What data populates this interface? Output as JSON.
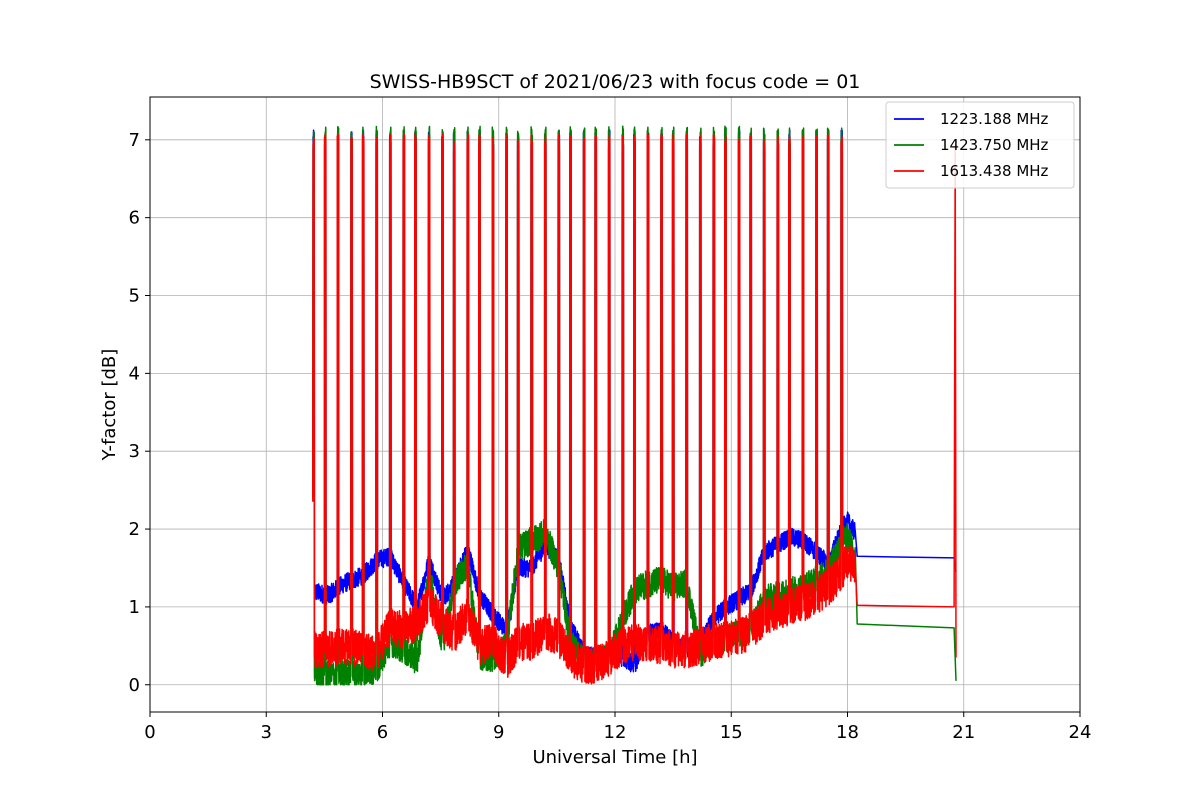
{
  "chart_data": {
    "type": "line",
    "title": "SWISS-HB9SCT of 2021/06/23 with focus code = 01",
    "xlabel": "Universal Time [h]",
    "ylabel": "Y-factor [dB]",
    "xlim": [
      0,
      24
    ],
    "ylim": [
      -0.35,
      7.55
    ],
    "xticks": [
      0,
      3,
      6,
      9,
      12,
      15,
      18,
      21,
      24
    ],
    "yticks": [
      0,
      1,
      2,
      3,
      4,
      5,
      6,
      7
    ],
    "grid": true,
    "legend_position": "top-right",
    "peak_hours": [
      4.22,
      4.52,
      4.85,
      5.2,
      5.5,
      5.85,
      6.2,
      6.55,
      6.85,
      7.2,
      7.55,
      7.85,
      8.2,
      8.5,
      8.85,
      9.2,
      9.5,
      9.85,
      10.2,
      10.55,
      10.85,
      11.2,
      11.5,
      11.85,
      12.2,
      12.5,
      12.85,
      13.2,
      13.5,
      13.85,
      14.2,
      14.55,
      14.85,
      15.2,
      15.5,
      15.85,
      16.2,
      16.5,
      16.85,
      17.2,
      17.5,
      17.85
    ],
    "series": [
      {
        "name": "1223.188 MHz",
        "color": "#0000ff",
        "peak_level": 7.0,
        "baseline": [
          [
            4.2,
            1.2
          ],
          [
            4.6,
            1.15
          ],
          [
            5.0,
            1.3
          ],
          [
            5.5,
            1.4
          ],
          [
            5.85,
            1.6
          ],
          [
            6.2,
            1.65
          ],
          [
            6.55,
            1.3
          ],
          [
            6.9,
            1.0
          ],
          [
            7.2,
            1.6
          ],
          [
            7.55,
            1.1
          ],
          [
            7.85,
            1.3
          ],
          [
            8.2,
            1.75
          ],
          [
            8.5,
            1.15
          ],
          [
            8.85,
            0.9
          ],
          [
            9.2,
            0.7
          ],
          [
            9.5,
            1.5
          ],
          [
            9.85,
            1.5
          ],
          [
            10.2,
            1.8
          ],
          [
            10.55,
            1.6
          ],
          [
            10.85,
            0.75
          ],
          [
            11.2,
            0.4
          ],
          [
            11.5,
            0.35
          ],
          [
            11.85,
            0.4
          ],
          [
            12.2,
            0.35
          ],
          [
            12.5,
            0.25
          ],
          [
            12.85,
            0.65
          ],
          [
            13.2,
            0.7
          ],
          [
            13.5,
            0.55
          ],
          [
            13.85,
            0.45
          ],
          [
            14.2,
            0.55
          ],
          [
            14.55,
            0.85
          ],
          [
            14.85,
            1.0
          ],
          [
            15.2,
            1.1
          ],
          [
            15.5,
            1.2
          ],
          [
            15.85,
            1.7
          ],
          [
            16.2,
            1.8
          ],
          [
            16.5,
            1.9
          ],
          [
            16.85,
            1.85
          ],
          [
            17.2,
            1.7
          ],
          [
            17.5,
            1.55
          ],
          [
            17.85,
            2.0
          ],
          [
            18.0,
            2.1
          ],
          [
            18.2,
            1.95
          ]
        ],
        "tail": [
          [
            18.25,
            1.65
          ],
          [
            20.75,
            1.63
          ],
          [
            20.8,
            1.45
          ]
        ]
      },
      {
        "name": "1423.750 MHz",
        "color": "#008000",
        "peak_level": 7.05,
        "baseline": [
          [
            4.2,
            0.15
          ],
          [
            4.6,
            0.12
          ],
          [
            5.0,
            0.15
          ],
          [
            5.5,
            0.15
          ],
          [
            5.85,
            0.2
          ],
          [
            6.2,
            0.55
          ],
          [
            6.55,
            0.45
          ],
          [
            6.9,
            0.3
          ],
          [
            7.2,
            1.45
          ],
          [
            7.55,
            0.5
          ],
          [
            7.85,
            1.3
          ],
          [
            8.2,
            1.55
          ],
          [
            8.5,
            0.35
          ],
          [
            8.85,
            0.35
          ],
          [
            9.2,
            0.5
          ],
          [
            9.5,
            1.75
          ],
          [
            9.85,
            1.85
          ],
          [
            10.2,
            1.95
          ],
          [
            10.55,
            1.5
          ],
          [
            10.85,
            0.55
          ],
          [
            11.2,
            0.3
          ],
          [
            11.5,
            0.3
          ],
          [
            11.85,
            0.35
          ],
          [
            12.2,
            0.85
          ],
          [
            12.5,
            1.2
          ],
          [
            12.85,
            1.3
          ],
          [
            13.2,
            1.35
          ],
          [
            13.5,
            1.25
          ],
          [
            13.85,
            1.3
          ],
          [
            14.2,
            0.4
          ],
          [
            14.55,
            0.55
          ],
          [
            14.85,
            0.6
          ],
          [
            15.2,
            0.65
          ],
          [
            15.5,
            0.7
          ],
          [
            15.85,
            1.1
          ],
          [
            16.2,
            1.15
          ],
          [
            16.5,
            1.2
          ],
          [
            16.85,
            1.25
          ],
          [
            17.2,
            1.35
          ],
          [
            17.5,
            1.45
          ],
          [
            17.85,
            1.85
          ],
          [
            18.0,
            1.9
          ],
          [
            18.2,
            1.65
          ]
        ],
        "tail": [
          [
            18.25,
            0.78
          ],
          [
            20.75,
            0.73
          ],
          [
            20.8,
            0.05
          ]
        ]
      },
      {
        "name": "1613.438 MHz",
        "color": "#ff0000",
        "peak_level": 6.95,
        "baseline": [
          [
            4.2,
            0.45
          ],
          [
            4.6,
            0.45
          ],
          [
            5.0,
            0.5
          ],
          [
            5.5,
            0.45
          ],
          [
            5.85,
            0.4
          ],
          [
            6.2,
            0.75
          ],
          [
            6.55,
            0.7
          ],
          [
            6.9,
            0.8
          ],
          [
            7.2,
            1.05
          ],
          [
            7.55,
            0.8
          ],
          [
            7.85,
            0.65
          ],
          [
            8.2,
            0.9
          ],
          [
            8.5,
            0.5
          ],
          [
            8.85,
            0.55
          ],
          [
            9.2,
            0.3
          ],
          [
            9.5,
            0.55
          ],
          [
            9.85,
            0.55
          ],
          [
            10.2,
            0.7
          ],
          [
            10.55,
            0.6
          ],
          [
            10.85,
            0.35
          ],
          [
            11.2,
            0.25
          ],
          [
            11.5,
            0.25
          ],
          [
            11.85,
            0.35
          ],
          [
            12.2,
            0.5
          ],
          [
            12.5,
            0.55
          ],
          [
            12.85,
            0.55
          ],
          [
            13.2,
            0.5
          ],
          [
            13.5,
            0.45
          ],
          [
            13.85,
            0.45
          ],
          [
            14.2,
            0.5
          ],
          [
            14.55,
            0.55
          ],
          [
            14.85,
            0.6
          ],
          [
            15.2,
            0.6
          ],
          [
            15.5,
            0.7
          ],
          [
            15.85,
            0.85
          ],
          [
            16.2,
            0.95
          ],
          [
            16.5,
            1.0
          ],
          [
            16.85,
            1.05
          ],
          [
            17.2,
            1.15
          ],
          [
            17.5,
            1.25
          ],
          [
            17.85,
            1.45
          ],
          [
            18.0,
            1.6
          ],
          [
            18.2,
            1.5
          ]
        ],
        "tail": [
          [
            18.25,
            1.02
          ],
          [
            20.75,
            1.0
          ],
          [
            20.78,
            6.9
          ],
          [
            20.8,
            0.35
          ]
        ]
      }
    ]
  }
}
